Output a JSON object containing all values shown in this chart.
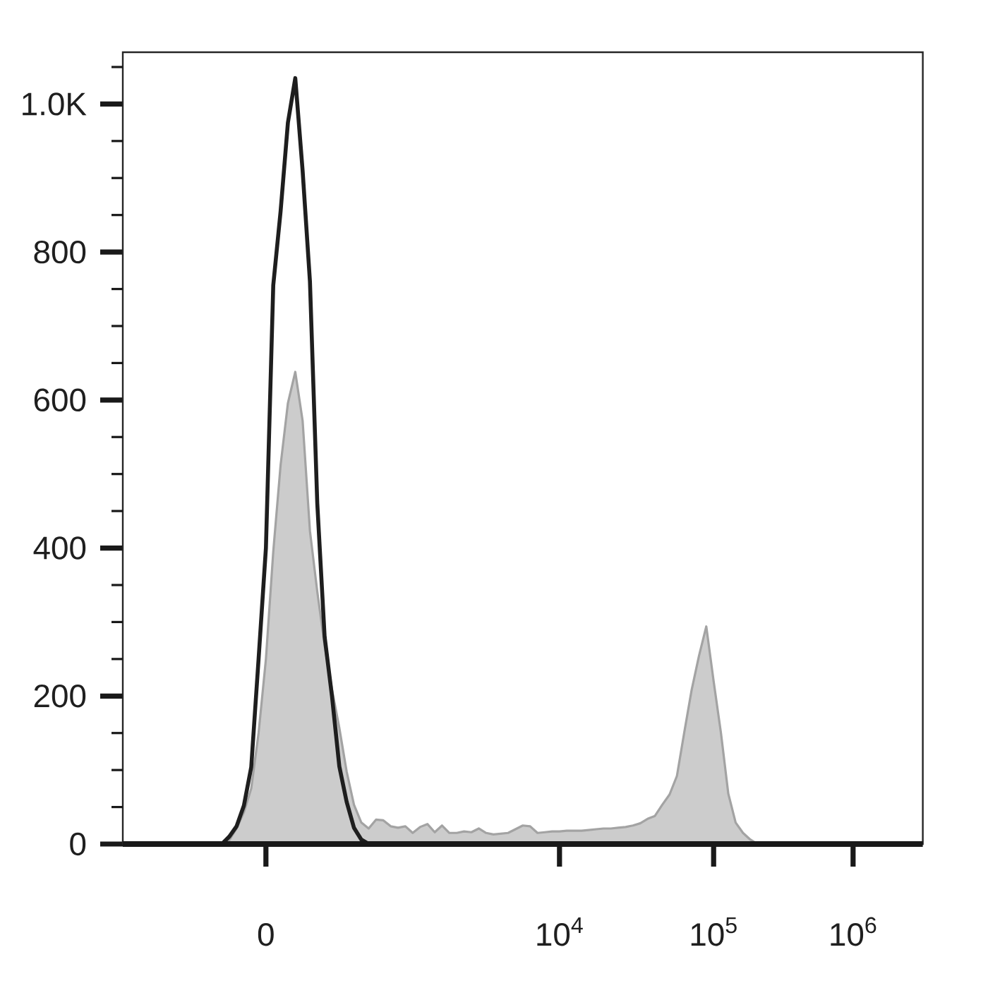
{
  "chart_data": {
    "type": "area",
    "categories": [
      null,
      null,
      null,
      null,
      null,
      null,
      null,
      null,
      null,
      null,
      null,
      null,
      null,
      null,
      null,
      null,
      null,
      null,
      null,
      "0",
      null,
      null,
      null,
      null,
      null,
      null,
      null,
      null,
      null,
      null,
      null,
      null,
      null,
      null,
      null,
      null,
      null,
      null,
      null,
      null,
      null,
      null,
      null,
      null,
      null,
      null,
      null,
      null,
      null,
      null,
      null,
      null,
      null,
      null,
      null,
      null,
      null,
      null,
      null,
      "10$^{4}$",
      null,
      null,
      null,
      null,
      null,
      null,
      null,
      null,
      null,
      null,
      null,
      null,
      null,
      null,
      null,
      null,
      null,
      null,
      null,
      null,
      "10$^{5}$",
      null,
      null,
      null,
      null,
      null,
      null,
      null,
      null,
      null,
      null,
      null,
      null,
      null,
      null,
      null,
      null,
      null,
      null,
      "10$^{6}$",
      null,
      null,
      null,
      null,
      null,
      null,
      null,
      null,
      null
    ],
    "series": [
      {
        "color": "#cccccc",
        "values": [
          0,
          0,
          0,
          0,
          0,
          0,
          0,
          0,
          0,
          0,
          0,
          0,
          0,
          0,
          5,
          21,
          43,
          75,
          150,
          250,
          395,
          512,
          596,
          638,
          572,
          423,
          341,
          268,
          209,
          157,
          98,
          53,
          29,
          21,
          33,
          32,
          24,
          22,
          24,
          15,
          23,
          27,
          16,
          25,
          15,
          15,
          17,
          16,
          21,
          15,
          13,
          14,
          15,
          20,
          25,
          24,
          15,
          16,
          17,
          17,
          18,
          18,
          18,
          19,
          20,
          21,
          21,
          22,
          23,
          25,
          28,
          34,
          38,
          53,
          67,
          92,
          151,
          208,
          254,
          294,
          220,
          150,
          68,
          29,
          15,
          6,
          0,
          0,
          0,
          0,
          0,
          0,
          0,
          0,
          0,
          0,
          0,
          0,
          0,
          0,
          0,
          0,
          0,
          0,
          0,
          0,
          0,
          0,
          0
        ]
      },
      {
        "type": "line",
        "color": "#1e1e1e",
        "values": [
          0,
          0,
          0,
          0,
          0,
          0,
          0,
          0,
          0,
          0,
          0,
          0,
          0,
          0,
          10,
          24,
          52,
          104,
          250,
          400,
          755,
          855,
          975,
          1035,
          910,
          760,
          460,
          280,
          200,
          105,
          57,
          22,
          6,
          0,
          0,
          0,
          0,
          0,
          0,
          0,
          0,
          0,
          0,
          0,
          0,
          0,
          0,
          0,
          0,
          0,
          0,
          0,
          0,
          0,
          0,
          0,
          0,
          0,
          0,
          0,
          0,
          0,
          0,
          0,
          0,
          0,
          0,
          0,
          0,
          0,
          0,
          0,
          0,
          0,
          0,
          0,
          0,
          0,
          0,
          0,
          0,
          0,
          0,
          0,
          0,
          0,
          0,
          0,
          0,
          0,
          0,
          0,
          0,
          0,
          0,
          0,
          0,
          0,
          0,
          0,
          0,
          0,
          0,
          0,
          0,
          0,
          0,
          0,
          0
        ]
      }
    ],
    "ylim": [
      0,
      1070
    ],
    "yticks": [
      0,
      {
        "value": 50,
        "label": null
      },
      {
        "value": 100,
        "label": null
      },
      {
        "value": 150,
        "label": null
      },
      200,
      {
        "value": 250,
        "label": null
      },
      {
        "value": 300,
        "label": null
      },
      {
        "value": 350,
        "label": null
      },
      400,
      {
        "value": 450,
        "label": null
      },
      {
        "value": 500,
        "label": null
      },
      {
        "value": 550,
        "label": null
      },
      600,
      {
        "value": 650,
        "label": null
      },
      {
        "value": 700,
        "label": null
      },
      {
        "value": 750,
        "label": null
      },
      800,
      {
        "value": 850,
        "label": null
      },
      {
        "value": 900,
        "label": null
      },
      {
        "value": 950,
        "label": null
      },
      {
        "value": 1000,
        "label": "1.0K"
      },
      {
        "value": 1050,
        "label": null
      }
    ]
  }
}
